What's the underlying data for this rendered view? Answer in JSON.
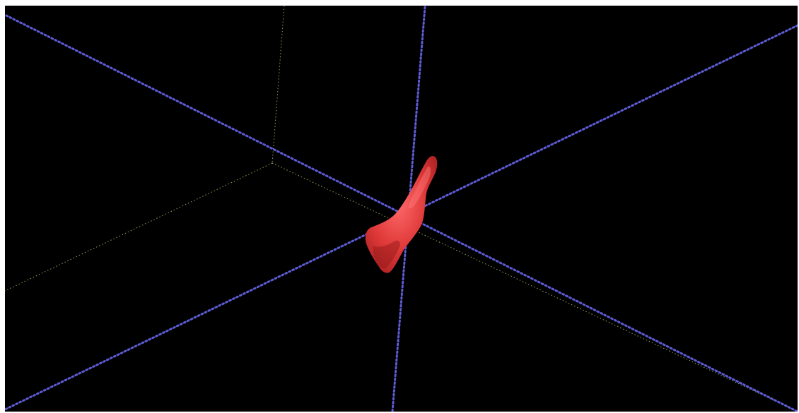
{
  "viewer": {
    "view_mode": "3d-render",
    "background_color": "#000000",
    "frame_color": "#ffffff"
  },
  "crosshair": {
    "color": "#5c5cd6",
    "style": "dotted"
  },
  "bounding_box": {
    "color": "#c8c878",
    "style": "dotted"
  },
  "segmentation": {
    "color": "#e03a3a",
    "highlight_color": "#ff6a6a",
    "shadow_color": "#a81e1e"
  }
}
